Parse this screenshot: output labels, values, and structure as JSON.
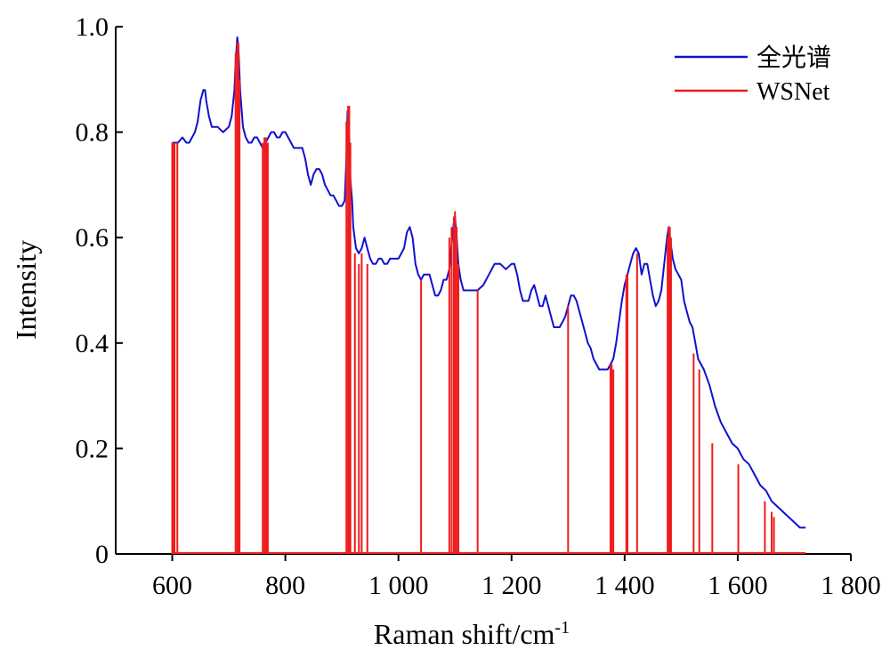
{
  "chart_data": {
    "type": "line",
    "xlabel": "Raman shift/cm",
    "xlabel_sup": "-1",
    "ylabel": "Intensity",
    "xlim": [
      500,
      1800
    ],
    "ylim": [
      0,
      1.0
    ],
    "x_ticks": [
      {
        "value": 600,
        "label": "600"
      },
      {
        "value": 800,
        "label": "800"
      },
      {
        "value": 1000,
        "label": "1 000"
      },
      {
        "value": 1200,
        "label": "1 200"
      },
      {
        "value": 1400,
        "label": "1 400"
      },
      {
        "value": 1600,
        "label": "1 600"
      },
      {
        "value": 1800,
        "label": "1 800"
      }
    ],
    "y_ticks": [
      {
        "value": 0,
        "label": "0"
      },
      {
        "value": 0.2,
        "label": "0.2"
      },
      {
        "value": 0.4,
        "label": "0.4"
      },
      {
        "value": 0.6,
        "label": "0.6"
      },
      {
        "value": 0.8,
        "label": "0.8"
      },
      {
        "value": 1.0,
        "label": "1.0"
      }
    ],
    "legend_position": "top-right",
    "grid": false,
    "series": [
      {
        "name": "全光谱",
        "color": "#1010d0",
        "kind": "line",
        "x": [
          600,
          605,
          610,
          618,
          625,
          630,
          635,
          640,
          645,
          650,
          655,
          658,
          660,
          665,
          670,
          680,
          690,
          700,
          705,
          710,
          712,
          715,
          717,
          720,
          725,
          730,
          735,
          740,
          745,
          750,
          755,
          760,
          765,
          770,
          775,
          780,
          785,
          790,
          795,
          800,
          805,
          810,
          815,
          820,
          825,
          830,
          835,
          840,
          845,
          850,
          855,
          860,
          865,
          870,
          875,
          880,
          885,
          890,
          895,
          900,
          905,
          908,
          910,
          912,
          915,
          918,
          920,
          925,
          930,
          935,
          940,
          945,
          950,
          955,
          960,
          965,
          970,
          975,
          980,
          985,
          990,
          995,
          1000,
          1005,
          1010,
          1015,
          1020,
          1025,
          1030,
          1035,
          1040,
          1045,
          1050,
          1055,
          1060,
          1065,
          1070,
          1075,
          1080,
          1085,
          1090,
          1095,
          1098,
          1100,
          1103,
          1106,
          1110,
          1115,
          1120,
          1125,
          1130,
          1135,
          1140,
          1150,
          1160,
          1170,
          1180,
          1190,
          1200,
          1205,
          1210,
          1215,
          1220,
          1225,
          1230,
          1235,
          1240,
          1245,
          1250,
          1255,
          1260,
          1265,
          1270,
          1275,
          1280,
          1285,
          1290,
          1295,
          1300,
          1305,
          1310,
          1315,
          1320,
          1325,
          1330,
          1335,
          1340,
          1345,
          1350,
          1355,
          1360,
          1365,
          1370,
          1375,
          1380,
          1385,
          1390,
          1395,
          1400,
          1405,
          1410,
          1415,
          1420,
          1425,
          1430,
          1435,
          1440,
          1445,
          1450,
          1455,
          1460,
          1465,
          1470,
          1475,
          1478,
          1480,
          1485,
          1490,
          1495,
          1500,
          1505,
          1510,
          1515,
          1520,
          1525,
          1530,
          1540,
          1550,
          1560,
          1570,
          1580,
          1590,
          1600,
          1610,
          1620,
          1630,
          1640,
          1650,
          1660,
          1670,
          1680,
          1690,
          1700,
          1710,
          1720
        ],
        "y": [
          0.78,
          0.78,
          0.78,
          0.79,
          0.78,
          0.78,
          0.79,
          0.8,
          0.82,
          0.86,
          0.88,
          0.88,
          0.86,
          0.83,
          0.81,
          0.81,
          0.8,
          0.81,
          0.83,
          0.88,
          0.93,
          0.98,
          0.96,
          0.88,
          0.81,
          0.79,
          0.78,
          0.78,
          0.79,
          0.79,
          0.78,
          0.77,
          0.78,
          0.79,
          0.8,
          0.8,
          0.79,
          0.79,
          0.8,
          0.8,
          0.79,
          0.78,
          0.77,
          0.77,
          0.77,
          0.77,
          0.75,
          0.72,
          0.7,
          0.72,
          0.73,
          0.73,
          0.72,
          0.7,
          0.69,
          0.68,
          0.68,
          0.67,
          0.66,
          0.66,
          0.67,
          0.75,
          0.84,
          0.82,
          0.71,
          0.67,
          0.62,
          0.58,
          0.57,
          0.58,
          0.6,
          0.58,
          0.56,
          0.55,
          0.55,
          0.56,
          0.56,
          0.55,
          0.55,
          0.56,
          0.56,
          0.56,
          0.56,
          0.57,
          0.58,
          0.61,
          0.62,
          0.6,
          0.55,
          0.53,
          0.52,
          0.53,
          0.53,
          0.53,
          0.51,
          0.49,
          0.49,
          0.5,
          0.52,
          0.52,
          0.54,
          0.6,
          0.63,
          0.64,
          0.6,
          0.55,
          0.52,
          0.5,
          0.5,
          0.5,
          0.5,
          0.5,
          0.5,
          0.51,
          0.53,
          0.55,
          0.55,
          0.54,
          0.55,
          0.55,
          0.53,
          0.5,
          0.48,
          0.48,
          0.48,
          0.5,
          0.51,
          0.49,
          0.47,
          0.47,
          0.49,
          0.47,
          0.45,
          0.43,
          0.43,
          0.43,
          0.44,
          0.45,
          0.47,
          0.49,
          0.49,
          0.48,
          0.46,
          0.44,
          0.42,
          0.4,
          0.39,
          0.37,
          0.36,
          0.35,
          0.35,
          0.35,
          0.35,
          0.36,
          0.37,
          0.4,
          0.44,
          0.48,
          0.51,
          0.53,
          0.55,
          0.57,
          0.58,
          0.57,
          0.53,
          0.55,
          0.55,
          0.52,
          0.49,
          0.47,
          0.48,
          0.5,
          0.55,
          0.6,
          0.62,
          0.6,
          0.56,
          0.54,
          0.53,
          0.52,
          0.48,
          0.46,
          0.44,
          0.43,
          0.4,
          0.37,
          0.35,
          0.32,
          0.28,
          0.25,
          0.23,
          0.21,
          0.2,
          0.18,
          0.17,
          0.15,
          0.13,
          0.12,
          0.1,
          0.09,
          0.08,
          0.07,
          0.06,
          0.05,
          0.05
        ]
      },
      {
        "name": "WSNet",
        "color": "#ee1c1c",
        "kind": "spikes",
        "x": [
          600,
          602,
          604,
          609,
          712,
          715,
          717,
          719,
          760,
          763,
          766,
          769,
          908,
          911,
          913,
          915,
          923,
          930,
          935,
          945,
          1040,
          1090,
          1094,
          1098,
          1100,
          1103,
          1106,
          1140,
          1300,
          1375,
          1377,
          1380,
          1403,
          1405,
          1422,
          1476,
          1478,
          1480,
          1482,
          1522,
          1532,
          1555,
          1601,
          1648,
          1660,
          1664
        ],
        "y": [
          0.78,
          0.78,
          0.78,
          0.78,
          0.95,
          0.97,
          0.97,
          0.9,
          0.78,
          0.79,
          0.79,
          0.78,
          0.82,
          0.85,
          0.85,
          0.78,
          0.57,
          0.55,
          0.57,
          0.55,
          0.52,
          0.6,
          0.62,
          0.64,
          0.65,
          0.62,
          0.55,
          0.5,
          0.47,
          0.36,
          0.36,
          0.35,
          0.53,
          0.53,
          0.57,
          0.6,
          0.62,
          0.62,
          0.6,
          0.38,
          0.35,
          0.21,
          0.17,
          0.1,
          0.08,
          0.07
        ]
      }
    ]
  }
}
